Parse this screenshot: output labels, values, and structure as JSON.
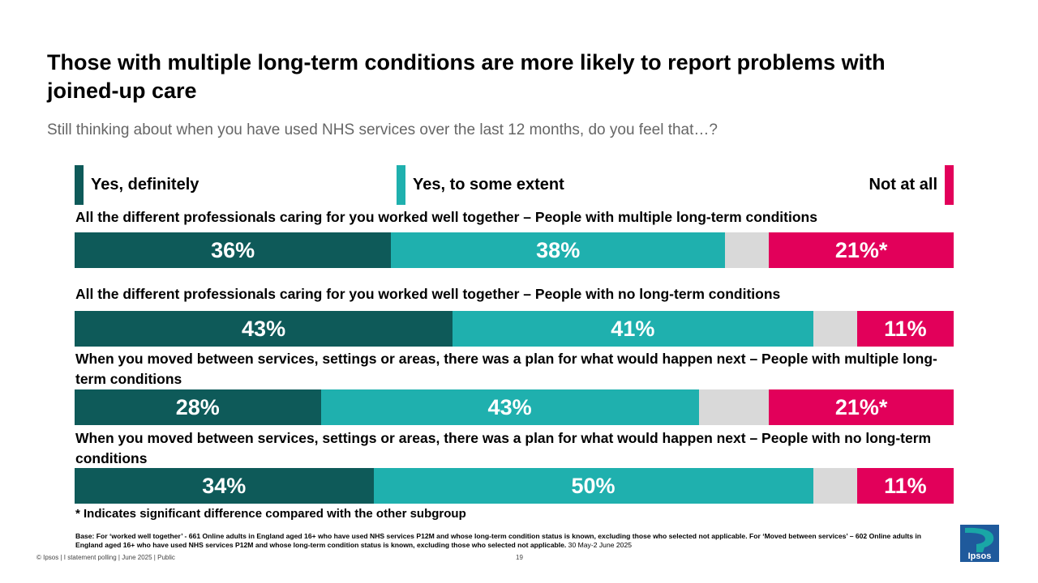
{
  "title": "Those with multiple long-term conditions are more likely to report problems with joined-up care",
  "subtitle": "Still thinking about when you have used NHS services over the last 12 months, do you feel that…?",
  "legend": [
    {
      "label": "Yes, definitely",
      "color": "#0e5a59"
    },
    {
      "label": "Yes, to some extent",
      "color": "#1fb0ae"
    },
    {
      "label": "Not at all",
      "color": "#e2005a"
    }
  ],
  "chart_data": {
    "type": "bar",
    "orientation": "horizontal-stacked",
    "categories": [
      "All the different professionals caring for you worked well together – People with multiple long-term conditions",
      "All the different professionals caring for you worked well together – People with no long-term conditions",
      "When you moved between services, settings or areas, there was a plan for what would happen next – People with multiple long-term conditions",
      "When you moved between services, settings or areas, there was a plan for what would happen next – People with no long-term conditions"
    ],
    "series": [
      {
        "name": "Yes, definitely",
        "color": "#0e5a59",
        "values": [
          36,
          43,
          28,
          34
        ],
        "labels": [
          "36%",
          "43%",
          "28%",
          "34%"
        ]
      },
      {
        "name": "Yes, to some extent",
        "color": "#1fb0ae",
        "values": [
          38,
          41,
          43,
          50
        ],
        "labels": [
          "38%",
          "41%",
          "43%",
          "50%"
        ]
      },
      {
        "name": "",
        "color": "#d9d9d9",
        "values": [
          5,
          5,
          8,
          5
        ],
        "labels": [
          "",
          "",
          "",
          ""
        ]
      },
      {
        "name": "Not at all",
        "color": "#e2005a",
        "values": [
          21,
          11,
          21,
          11
        ],
        "labels": [
          "21%*",
          "11%",
          "21%*",
          "11%"
        ]
      }
    ],
    "xlim": [
      0,
      100
    ]
  },
  "note": "* Indicates significant difference compared with the other subgroup",
  "base_text": "Base: For ‘worked well together’ - 661 Online adults in England aged 16+ who have used NHS services P12M and whose long-term condition status is known, excluding those who selected not applicable. For ‘Moved between services’ – 602 Online adults in England aged 16+ who have used NHS services P12M and whose long-term condition status is known, excluding those who selected not applicable.",
  "base_dates": "30 May-2 June 2025",
  "footer": "© Ipsos | I statement polling | June 2025 | Public",
  "page_number": "19",
  "logo_text": "Ipsos"
}
